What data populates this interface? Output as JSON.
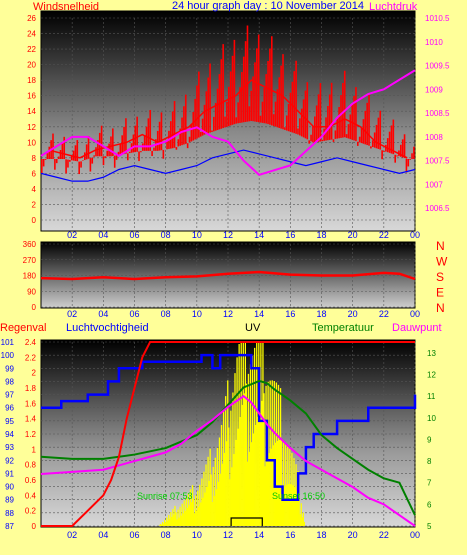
{
  "title": "24 hour graph day : 10 November 2014",
  "x_ticks": [
    "02",
    "04",
    "06",
    "08",
    "10",
    "12",
    "14",
    "16",
    "18",
    "20",
    "22",
    "00"
  ],
  "panels": {
    "wind": {
      "left_label": "Windsnelheid",
      "right_label": "Luchtdruk",
      "left_ticks": [
        "0",
        "2",
        "4",
        "6",
        "8",
        "10",
        "12",
        "14",
        "16",
        "18",
        "20",
        "22",
        "24",
        "26"
      ],
      "right_ticks": [
        "1006.5",
        "1007",
        "1007.5",
        "1008",
        "1008.5",
        "1009",
        "1009.5",
        "1010",
        "1010.5"
      ]
    },
    "direction": {
      "left_ticks": [
        "0",
        "90",
        "180",
        "270",
        "360"
      ],
      "right_labels": [
        "N",
        "W",
        "S",
        "E",
        "N"
      ]
    },
    "rain": {
      "label_rain": "Regenval",
      "label_humidity": "Luchtvochtigheid",
      "label_uv": "UV",
      "label_temp": "Temperatuur",
      "label_dew": "Dauwpunt",
      "left_ticks": [
        "87",
        "88",
        "89",
        "90",
        "91",
        "92",
        "93",
        "94",
        "95",
        "96",
        "97",
        "98",
        "99",
        "100",
        "101"
      ],
      "inner_ticks": [
        "0",
        "0.2",
        "0.4",
        "0.6",
        "0.8",
        "1",
        "1.2",
        "1.4",
        "1.6",
        "1.8",
        "2",
        "2.2",
        "2.4"
      ],
      "right_ticks": [
        "5",
        "6",
        "7",
        "8",
        "9",
        "10",
        "11",
        "12",
        "13"
      ],
      "sunrise_label": "Sunrise 07:53",
      "sunset_label": "Sunset 16:50"
    }
  },
  "colors": {
    "wind_gust": "#ff0000",
    "wind_avg": "#0000ff",
    "pressure": "#ff00ff",
    "direction": "#ff0000",
    "rain": "#ff0000",
    "humidity": "#0000ff",
    "uv": "#ffff00",
    "temperature": "#008000",
    "dewpoint": "#ff00ff",
    "title": "#0000ff",
    "axis_text": "#ff0000",
    "right_axis_text": "#ff00ff"
  },
  "chart_data": [
    {
      "type": "line",
      "title": "24 hour graph day : 10 November 2014",
      "x_unit": "hour",
      "xlim": [
        0,
        24
      ],
      "ylim_left": [
        0,
        26
      ],
      "ylim_right": [
        1006.25,
        1010.5
      ],
      "series": [
        {
          "name": "Windsnelheid",
          "axis": "left",
          "x": [
            0.5,
            1.5,
            2.5,
            3.5,
            4.5,
            5.5,
            6.5,
            7.5,
            8.5,
            9.5,
            10.5,
            11.5,
            12.5,
            13.5,
            14.5,
            15.5,
            16.5,
            17.5,
            18.5,
            19.5,
            20.5,
            21.5,
            22.5,
            23.5
          ],
          "values": [
            9,
            8.5,
            8,
            9,
            9.5,
            10,
            11,
            10,
            11,
            12,
            14,
            15,
            16,
            18,
            17,
            16,
            14,
            12,
            12,
            13,
            12,
            10,
            9,
            8
          ]
        },
        {
          "name": "wind gust max",
          "axis": "left",
          "x": [
            0.5,
            1.5,
            2.5,
            3.5,
            4.5,
            5.5,
            6.5,
            7.5,
            8.5,
            9.5,
            10.5,
            11.5,
            12.5,
            13.5,
            14.5,
            15.5,
            16.5,
            17.5,
            18.5,
            19.5,
            20.5,
            21.5,
            22.5,
            23.5
          ],
          "values": [
            11,
            11,
            10,
            12,
            12,
            13,
            14,
            14,
            15,
            17,
            20,
            22,
            24,
            25,
            24,
            22,
            20,
            17,
            18,
            19,
            17,
            15,
            13,
            11
          ]
        },
        {
          "name": "Windsnelheid avg",
          "axis": "left",
          "x": [
            0,
            1,
            2,
            3,
            4,
            5,
            6,
            7,
            8,
            9,
            10,
            11,
            12,
            13,
            14,
            15,
            16,
            17,
            18,
            19,
            20,
            21,
            22,
            23,
            24
          ],
          "values": [
            6,
            5.5,
            5,
            5,
            5.5,
            6.5,
            7,
            6.5,
            6,
            6.5,
            7,
            8,
            8.5,
            9,
            8.5,
            8,
            7.5,
            7,
            7.5,
            8,
            7.5,
            7,
            6.5,
            6,
            6.5
          ]
        },
        {
          "name": "Luchtdruk",
          "axis": "right",
          "x": [
            0,
            1,
            2,
            3,
            4,
            5,
            6,
            7,
            8,
            9,
            10,
            11,
            12,
            13,
            14,
            15,
            16,
            17,
            18,
            19,
            20,
            21,
            22,
            23,
            24
          ],
          "values": [
            1007.6,
            1007.8,
            1008.0,
            1008.0,
            1007.8,
            1007.6,
            1007.8,
            1007.8,
            1007.9,
            1008.1,
            1008.2,
            1008.0,
            1007.9,
            1007.5,
            1007.2,
            1007.3,
            1007.4,
            1007.7,
            1008.0,
            1008.4,
            1008.7,
            1008.9,
            1009.0,
            1009.2,
            1009.4
          ]
        }
      ]
    },
    {
      "type": "line",
      "x_unit": "hour",
      "xlim": [
        0,
        24
      ],
      "ylim": [
        0,
        360
      ],
      "series": [
        {
          "name": "wind direction",
          "x": [
            0,
            2,
            4,
            6,
            8,
            10,
            12,
            14,
            16,
            18,
            20,
            22,
            23,
            24
          ],
          "values": [
            165,
            160,
            170,
            160,
            170,
            175,
            190,
            200,
            185,
            180,
            180,
            195,
            190,
            160
          ]
        }
      ]
    },
    {
      "type": "line",
      "x_unit": "hour",
      "xlim": [
        0,
        24
      ],
      "ylim_humidity": [
        87,
        101
      ],
      "ylim_rain": [
        0,
        2.4
      ],
      "ylim_temp": [
        5,
        13.5
      ],
      "series": [
        {
          "name": "Regenval",
          "axis": "rain",
          "x": [
            0,
            2,
            3,
            4,
            4.5,
            5,
            5.5,
            6,
            6.5,
            7,
            24
          ],
          "values": [
            0,
            0,
            0.2,
            0.4,
            0.6,
            0.9,
            1.4,
            1.8,
            2.2,
            2.4,
            2.4
          ]
        },
        {
          "name": "Luchtvochtigheid",
          "axis": "humidity",
          "x": [
            0,
            1,
            1.3,
            3,
            4.3,
            5,
            6,
            6.5,
            8,
            10,
            10.3,
            10.6,
            11,
            11.5,
            12,
            13,
            13.5,
            14,
            14.5,
            15,
            15.5,
            16,
            16.5,
            17,
            17.5,
            18,
            19,
            20,
            20.5,
            21,
            22,
            23,
            24
          ],
          "values": [
            96,
            96,
            96.5,
            97,
            98,
            99,
            99,
            99.5,
            99.5,
            99.5,
            100,
            100,
            99,
            100,
            100,
            100,
            99,
            95,
            92,
            90,
            89,
            89,
            91,
            93,
            94,
            94,
            95,
            95,
            95,
            96,
            96,
            96,
            97
          ]
        },
        {
          "name": "UV",
          "axis": "rain",
          "x": [
            7.5,
            8,
            8.5,
            9,
            9.5,
            10,
            10.5,
            11,
            11.5,
            12,
            12.5,
            13,
            13.5,
            14,
            14.5,
            15,
            15.5,
            16,
            16.5,
            17
          ],
          "values": [
            0,
            0.1,
            0.2,
            0.3,
            0.4,
            0.5,
            0.7,
            0.9,
            1.2,
            1.6,
            2.2,
            2.4,
            2.4,
            2.3,
            2.2,
            1.8,
            1.4,
            1.0,
            0.6,
            0
          ]
        },
        {
          "name": "Temperatuur",
          "axis": "temp",
          "x": [
            0,
            2,
            4,
            6,
            8,
            10,
            11,
            12,
            13,
            14,
            14.5,
            15,
            16,
            17,
            18,
            19,
            20,
            21,
            22,
            23,
            24
          ],
          "values": [
            8.2,
            8.1,
            8.1,
            8.3,
            8.6,
            9.2,
            9.8,
            10.6,
            11.4,
            11.7,
            11.6,
            11.3,
            10.8,
            10.2,
            9.2,
            8.6,
            8.1,
            7.6,
            7.2,
            7.0,
            5.5
          ]
        },
        {
          "name": "Dauwpunt",
          "axis": "temp",
          "x": [
            0,
            2,
            4,
            6,
            8,
            9,
            10,
            11,
            12,
            13,
            13.5,
            14,
            14.5,
            15,
            16,
            17,
            18,
            19,
            20,
            21,
            22,
            23,
            24
          ],
          "values": [
            7.4,
            7.5,
            7.6,
            8.0,
            8.4,
            8.8,
            9.4,
            9.9,
            10.5,
            11.0,
            10.7,
            10.2,
            9.7,
            9.3,
            8.6,
            8.0,
            7.6,
            7.2,
            6.8,
            6.3,
            6.0,
            5.5,
            5.0
          ]
        }
      ]
    }
  ]
}
